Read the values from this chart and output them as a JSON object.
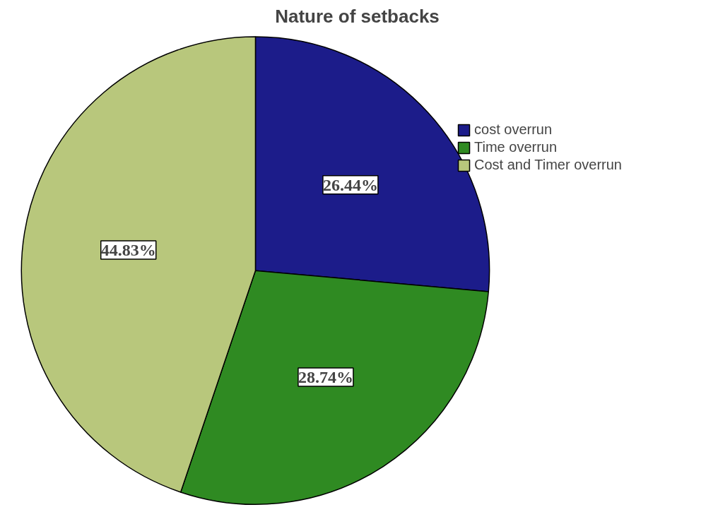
{
  "chart_data": {
    "type": "pie",
    "title": "Nature of setbacks",
    "categories": [
      "cost overrun",
      "Time overrun",
      "Cost and Timer overrun"
    ],
    "values": [
      26.44,
      28.74,
      44.83
    ],
    "colors": [
      "#1c1c8a",
      "#2f8a22",
      "#b8c77c"
    ],
    "value_labels": [
      "26.44%",
      "28.74%",
      "44.83%"
    ],
    "legend": "right"
  }
}
